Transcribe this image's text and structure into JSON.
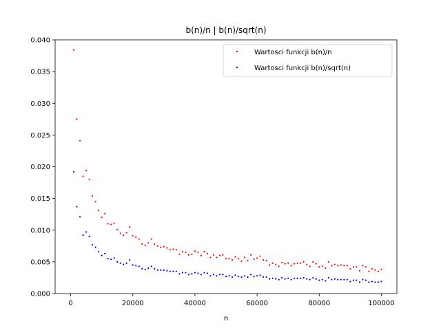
{
  "chart_data": {
    "type": "scatter",
    "title": "b(n)/n | b(n)/sqrt(n)",
    "xlabel": "n",
    "ylabel": "",
    "xlim": [
      -5000,
      105000
    ],
    "ylim": [
      0,
      0.04
    ],
    "xticks": [
      0,
      20000,
      40000,
      60000,
      80000,
      100000
    ],
    "xtick_labels": [
      "0",
      "20000",
      "40000",
      "60000",
      "80000",
      "100000"
    ],
    "yticks": [
      0,
      0.005,
      0.01,
      0.015,
      0.02,
      0.025,
      0.03,
      0.035,
      0.04
    ],
    "ytick_labels": [
      "0.000",
      "0.005",
      "0.010",
      "0.015",
      "0.020",
      "0.025",
      "0.030",
      "0.035",
      "0.040"
    ],
    "grid": false,
    "legend_position": "top-right",
    "series": [
      {
        "name": "Wartosci funkcji b(n)/n",
        "color": "#ff0000",
        "points": [
          [
            1000,
            0.0384
          ],
          [
            2000,
            0.0275
          ],
          [
            3000,
            0.0241
          ],
          [
            4000,
            0.0185
          ],
          [
            5000,
            0.0194
          ],
          [
            6000,
            0.018
          ],
          [
            7000,
            0.0154
          ],
          [
            8000,
            0.0145
          ],
          [
            9000,
            0.0131
          ],
          [
            10000,
            0.012
          ],
          [
            11000,
            0.0126
          ],
          [
            12000,
            0.011
          ],
          [
            13000,
            0.0109
          ],
          [
            14000,
            0.0111
          ],
          [
            15000,
            0.0101
          ],
          [
            16000,
            0.0095
          ],
          [
            17000,
            0.0092
          ],
          [
            18000,
            0.0096
          ],
          [
            19000,
            0.0105
          ],
          [
            20000,
            0.0091
          ],
          [
            21000,
            0.0089
          ],
          [
            22000,
            0.0086
          ],
          [
            23000,
            0.0078
          ],
          [
            24000,
            0.0076
          ],
          [
            25000,
            0.008
          ],
          [
            26000,
            0.0086
          ],
          [
            27000,
            0.0078
          ],
          [
            28000,
            0.0075
          ],
          [
            29000,
            0.0073
          ],
          [
            30000,
            0.0074
          ],
          [
            31000,
            0.0072
          ],
          [
            32000,
            0.0069
          ],
          [
            33000,
            0.007
          ],
          [
            34000,
            0.0069
          ],
          [
            35000,
            0.0062
          ],
          [
            36000,
            0.0066
          ],
          [
            37000,
            0.0065
          ],
          [
            38000,
            0.0061
          ],
          [
            39000,
            0.0062
          ],
          [
            40000,
            0.0067
          ],
          [
            41000,
            0.0065
          ],
          [
            42000,
            0.006
          ],
          [
            43000,
            0.0066
          ],
          [
            44000,
            0.0063
          ],
          [
            45000,
            0.0057
          ],
          [
            46000,
            0.0061
          ],
          [
            47000,
            0.0057
          ],
          [
            48000,
            0.006
          ],
          [
            49000,
            0.0061
          ],
          [
            50000,
            0.0055
          ],
          [
            51000,
            0.0055
          ],
          [
            52000,
            0.0053
          ],
          [
            53000,
            0.0058
          ],
          [
            54000,
            0.0055
          ],
          [
            55000,
            0.0051
          ],
          [
            56000,
            0.0057
          ],
          [
            57000,
            0.0052
          ],
          [
            58000,
            0.0061
          ],
          [
            59000,
            0.0054
          ],
          [
            60000,
            0.0056
          ],
          [
            61000,
            0.0059
          ],
          [
            62000,
            0.0053
          ],
          [
            63000,
            0.0052
          ],
          [
            64000,
            0.0045
          ],
          [
            65000,
            0.0048
          ],
          [
            66000,
            0.0046
          ],
          [
            67000,
            0.0043
          ],
          [
            68000,
            0.0049
          ],
          [
            69000,
            0.0047
          ],
          [
            70000,
            0.0048
          ],
          [
            71000,
            0.0044
          ],
          [
            72000,
            0.0047
          ],
          [
            73000,
            0.0048
          ],
          [
            74000,
            0.0048
          ],
          [
            75000,
            0.005
          ],
          [
            76000,
            0.0046
          ],
          [
            77000,
            0.0043
          ],
          [
            78000,
            0.005
          ],
          [
            79000,
            0.0047
          ],
          [
            80000,
            0.0042
          ],
          [
            81000,
            0.0043
          ],
          [
            82000,
            0.004
          ],
          [
            83000,
            0.005
          ],
          [
            84000,
            0.0044
          ],
          [
            85000,
            0.0046
          ],
          [
            86000,
            0.0044
          ],
          [
            87000,
            0.0045
          ],
          [
            88000,
            0.0044
          ],
          [
            89000,
            0.0044
          ],
          [
            90000,
            0.0039
          ],
          [
            91000,
            0.0042
          ],
          [
            92000,
            0.0042
          ],
          [
            93000,
            0.0036
          ],
          [
            94000,
            0.0044
          ],
          [
            95000,
            0.0042
          ],
          [
            96000,
            0.0035
          ],
          [
            97000,
            0.0039
          ],
          [
            98000,
            0.0037
          ],
          [
            99000,
            0.0035
          ],
          [
            100000,
            0.0038
          ]
        ]
      },
      {
        "name": "Wartosci funkcji b(n)/sqrt(n)",
        "color": "#0000ff",
        "points": [
          [
            1000,
            0.0192
          ],
          [
            2000,
            0.0137
          ],
          [
            3000,
            0.0121
          ],
          [
            4000,
            0.0092
          ],
          [
            5000,
            0.0097
          ],
          [
            6000,
            0.009
          ],
          [
            7000,
            0.0077
          ],
          [
            8000,
            0.0073
          ],
          [
            9000,
            0.0066
          ],
          [
            10000,
            0.006
          ],
          [
            11000,
            0.0063
          ],
          [
            12000,
            0.0055
          ],
          [
            13000,
            0.0054
          ],
          [
            14000,
            0.0056
          ],
          [
            15000,
            0.005
          ],
          [
            16000,
            0.0048
          ],
          [
            17000,
            0.0046
          ],
          [
            18000,
            0.0048
          ],
          [
            19000,
            0.0053
          ],
          [
            20000,
            0.0045
          ],
          [
            21000,
            0.0044
          ],
          [
            22000,
            0.0043
          ],
          [
            23000,
            0.0039
          ],
          [
            24000,
            0.0038
          ],
          [
            25000,
            0.004
          ],
          [
            26000,
            0.0043
          ],
          [
            27000,
            0.0039
          ],
          [
            28000,
            0.0037
          ],
          [
            29000,
            0.0037
          ],
          [
            30000,
            0.0037
          ],
          [
            31000,
            0.0036
          ],
          [
            32000,
            0.0035
          ],
          [
            33000,
            0.0035
          ],
          [
            34000,
            0.0035
          ],
          [
            35000,
            0.0031
          ],
          [
            36000,
            0.0033
          ],
          [
            37000,
            0.0033
          ],
          [
            38000,
            0.003
          ],
          [
            39000,
            0.0031
          ],
          [
            40000,
            0.0033
          ],
          [
            41000,
            0.0032
          ],
          [
            42000,
            0.003
          ],
          [
            43000,
            0.0033
          ],
          [
            44000,
            0.0032
          ],
          [
            45000,
            0.0028
          ],
          [
            46000,
            0.003
          ],
          [
            47000,
            0.0028
          ],
          [
            48000,
            0.003
          ],
          [
            49000,
            0.003
          ],
          [
            50000,
            0.0027
          ],
          [
            51000,
            0.0028
          ],
          [
            52000,
            0.0026
          ],
          [
            53000,
            0.0029
          ],
          [
            54000,
            0.0027
          ],
          [
            55000,
            0.0026
          ],
          [
            56000,
            0.0028
          ],
          [
            57000,
            0.0026
          ],
          [
            58000,
            0.003
          ],
          [
            59000,
            0.0027
          ],
          [
            60000,
            0.0028
          ],
          [
            61000,
            0.0029
          ],
          [
            62000,
            0.0026
          ],
          [
            63000,
            0.0026
          ],
          [
            64000,
            0.0023
          ],
          [
            65000,
            0.0024
          ],
          [
            66000,
            0.0023
          ],
          [
            67000,
            0.0022
          ],
          [
            68000,
            0.0025
          ],
          [
            69000,
            0.0023
          ],
          [
            70000,
            0.0024
          ],
          [
            71000,
            0.0022
          ],
          [
            72000,
            0.0024
          ],
          [
            73000,
            0.0024
          ],
          [
            74000,
            0.0024
          ],
          [
            75000,
            0.0025
          ],
          [
            76000,
            0.0023
          ],
          [
            77000,
            0.0022
          ],
          [
            78000,
            0.0025
          ],
          [
            79000,
            0.0023
          ],
          [
            80000,
            0.0021
          ],
          [
            81000,
            0.0022
          ],
          [
            82000,
            0.002
          ],
          [
            83000,
            0.0025
          ],
          [
            84000,
            0.0022
          ],
          [
            85000,
            0.0023
          ],
          [
            86000,
            0.0022
          ],
          [
            87000,
            0.0022
          ],
          [
            88000,
            0.0022
          ],
          [
            89000,
            0.0022
          ],
          [
            90000,
            0.0019
          ],
          [
            91000,
            0.0021
          ],
          [
            92000,
            0.0021
          ],
          [
            93000,
            0.0018
          ],
          [
            94000,
            0.0022
          ],
          [
            95000,
            0.0021
          ],
          [
            96000,
            0.0018
          ],
          [
            97000,
            0.0019
          ],
          [
            98000,
            0.0018
          ],
          [
            99000,
            0.0018
          ],
          [
            100000,
            0.0019
          ]
        ]
      }
    ]
  }
}
